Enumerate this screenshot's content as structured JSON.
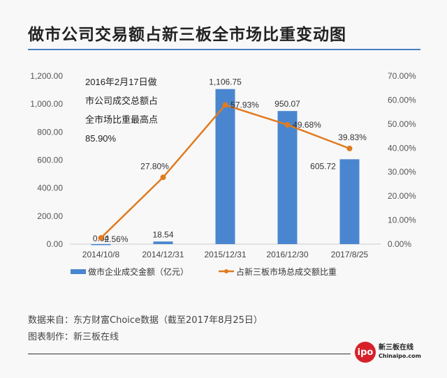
{
  "title": "做市公司交易额占新三板全市场比重变动图",
  "chart_data": {
    "type": "bar+line",
    "categories": [
      "2014/10/8",
      "2014/12/31",
      "2015/12/31",
      "2016/12/30",
      "2017/8/25"
    ],
    "series": [
      {
        "name": "做市企业成交金额（亿元）",
        "type": "bar",
        "axis": "left",
        "values": [
          0.04,
          18.54,
          1106.75,
          950.07,
          605.72
        ],
        "labels": [
          "0.04",
          "18.54",
          "1,106.75",
          "950.07",
          "605.72"
        ],
        "color": "#4a86cf"
      },
      {
        "name": "占新三板市场总成交额比重",
        "type": "line",
        "axis": "right",
        "values": [
          2.56,
          27.8,
          57.93,
          49.68,
          39.83
        ],
        "labels": [
          "2.56%",
          "27.80%",
          "57.93%",
          "49.68%",
          "39.83%"
        ],
        "color": "#e07b1f"
      }
    ],
    "left_axis": {
      "range": [
        0,
        1200
      ],
      "ticks": [
        "0.00",
        "200.00",
        "400.00",
        "600.00",
        "800.00",
        "1,000.00",
        "1,200.00"
      ]
    },
    "right_axis": {
      "range": [
        0,
        70
      ],
      "ticks": [
        "0.00%",
        "10.00%",
        "20.00%",
        "30.00%",
        "40.00%",
        "50.00%",
        "60.00%",
        "70.00%"
      ]
    },
    "annotation": [
      "2016年2月17日做",
      "市公司成交总额占",
      "全市场比重最高点",
      "85.90%"
    ],
    "legend_position": "bottom",
    "grid": false
  },
  "footer": {
    "source": "数据来自：东方财富Choice数据（截至2017年8月25日）",
    "maker": "图表制作：新三板在线"
  },
  "logo": {
    "mark": "ipo",
    "name": "新三板在线",
    "site": "Chinaipo.com"
  }
}
